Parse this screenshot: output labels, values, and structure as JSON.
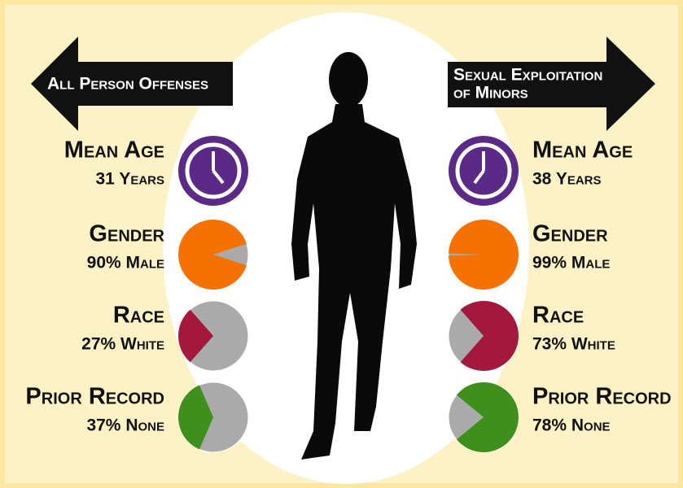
{
  "left": {
    "title_lines": [
      "All Person Offenses"
    ],
    "stats": [
      {
        "label": "Mean Age",
        "value_text": "31 Years"
      },
      {
        "label": "Gender",
        "value_text": "90% Male",
        "value": 90,
        "color": "#f57200"
      },
      {
        "label": "Race",
        "value_text": "27% White",
        "value": 27,
        "color": "#a3193c"
      },
      {
        "label": "Prior Record",
        "value_text": "37% None",
        "value": 37,
        "color": "#3f8f1c"
      }
    ]
  },
  "right": {
    "title_lines": [
      "Sexual Exploitation",
      "of Minors"
    ],
    "stats": [
      {
        "label": "Mean Age",
        "value_text": "38 Years"
      },
      {
        "label": "Gender",
        "value_text": "99% Male",
        "value": 99,
        "color": "#f57200"
      },
      {
        "label": "Race",
        "value_text": "73% White",
        "value": 73,
        "color": "#a3193c"
      },
      {
        "label": "Prior Record",
        "value_text": "78% None",
        "value": 78,
        "color": "#3f8f1c"
      }
    ]
  }
}
